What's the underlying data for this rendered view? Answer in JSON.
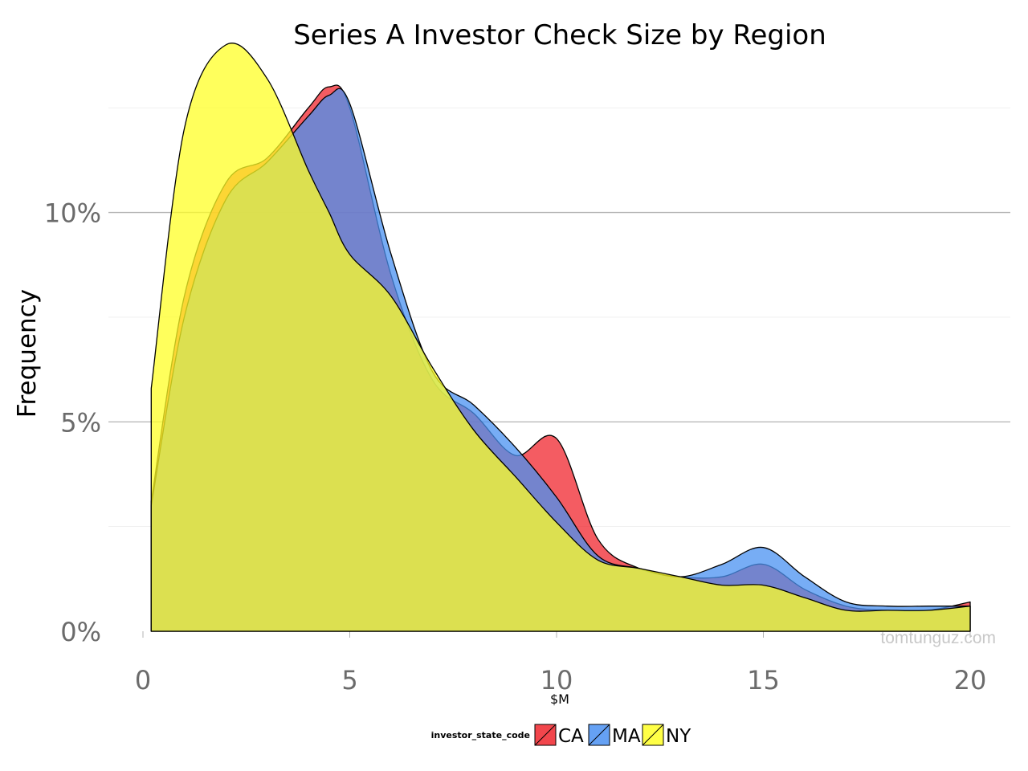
{
  "chart_data": {
    "type": "area",
    "title": "Series A Investor Check Size by Region",
    "xlabel": "$M",
    "ylabel": "Frequency",
    "xlim": [
      0,
      20
    ],
    "ylim": [
      0,
      14
    ],
    "x_ticks": [
      0,
      5,
      10,
      15,
      20
    ],
    "x_tick_labels": [
      "0",
      "5",
      "10",
      "15",
      "20"
    ],
    "y_ticks": [
      0,
      5,
      10
    ],
    "y_tick_labels": [
      "0%",
      "5%",
      "10%"
    ],
    "grid": true,
    "legend": {
      "title": "investor_state_code",
      "position": "bottom"
    },
    "watermark": "tomtunguz.com",
    "x": [
      0.2,
      1,
      2,
      3,
      4,
      4.5,
      5,
      6,
      7,
      8,
      9,
      10,
      11,
      12,
      13,
      14,
      15,
      16,
      17,
      18,
      19,
      20
    ],
    "series": [
      {
        "name": "CA",
        "color": "#f0262d",
        "values": [
          3.1,
          8.0,
          10.7,
          11.3,
          12.5,
          13.0,
          12.5,
          8.5,
          6.0,
          5.2,
          4.2,
          4.6,
          2.2,
          1.5,
          1.3,
          1.3,
          1.6,
          1.0,
          0.6,
          0.5,
          0.5,
          0.7
        ]
      },
      {
        "name": "MA",
        "color": "#4a91f2",
        "values": [
          3.0,
          7.5,
          10.3,
          11.2,
          12.3,
          12.8,
          12.6,
          9.0,
          6.2,
          5.4,
          4.4,
          3.2,
          1.8,
          1.5,
          1.3,
          1.6,
          2.0,
          1.3,
          0.7,
          0.6,
          0.6,
          0.6
        ]
      },
      {
        "name": "NY",
        "color": "#ffff26",
        "values": [
          5.8,
          12.0,
          14.0,
          13.2,
          11.0,
          10.0,
          9.0,
          8.0,
          6.3,
          4.8,
          3.7,
          2.6,
          1.7,
          1.5,
          1.3,
          1.1,
          1.1,
          0.8,
          0.5,
          0.5,
          0.5,
          0.6
        ]
      }
    ]
  }
}
